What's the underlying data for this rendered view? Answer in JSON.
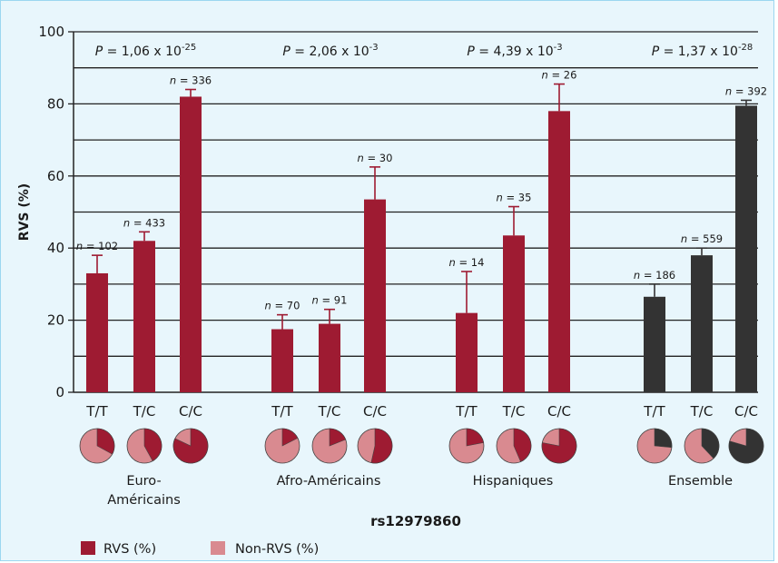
{
  "chart_data": {
    "type": "bar",
    "ylabel": "RVS (%)",
    "xlabel": "rs12979860",
    "ylim": [
      0,
      100
    ],
    "yticks": [
      0,
      20,
      40,
      60,
      80,
      100
    ],
    "grid": true,
    "n_prefix": "n = ",
    "groups": [
      {
        "name_lines": [
          "Euro-",
          "Américains"
        ],
        "p_value": {
          "prefix": "P",
          "mantissa": " = 1,06 x 10",
          "exponent": "-25"
        },
        "bars": [
          {
            "genotype": "T/T",
            "value": 33,
            "err": 5,
            "n": "102"
          },
          {
            "genotype": "T/C",
            "value": 42,
            "err": 2.5,
            "n": "433"
          },
          {
            "genotype": "C/C",
            "value": 82,
            "err": 2,
            "n": "336"
          }
        ]
      },
      {
        "name_lines": [
          "Afro-Américains"
        ],
        "p_value": {
          "prefix": "P",
          "mantissa": " = 2,06 x 10",
          "exponent": "-3"
        },
        "bars": [
          {
            "genotype": "T/T",
            "value": 17.5,
            "err": 4,
            "n": "70"
          },
          {
            "genotype": "T/C",
            "value": 19,
            "err": 4,
            "n": "91"
          },
          {
            "genotype": "C/C",
            "value": 53.5,
            "err": 9,
            "n": "30"
          }
        ]
      },
      {
        "name_lines": [
          "Hispaniques"
        ],
        "p_value": {
          "prefix": "P",
          "mantissa": " = 4,39 x 10",
          "exponent": "-3"
        },
        "bars": [
          {
            "genotype": "T/T",
            "value": 22,
            "err": 11.5,
            "n": "14"
          },
          {
            "genotype": "T/C",
            "value": 43.5,
            "err": 8,
            "n": "35"
          },
          {
            "genotype": "C/C",
            "value": 78,
            "err": 7.5,
            "n": "26"
          }
        ]
      },
      {
        "name_lines": [
          "Ensemble"
        ],
        "p_value": {
          "prefix": "P",
          "mantissa": " = 1,37 x 10",
          "exponent": "-28"
        },
        "bars": [
          {
            "genotype": "T/T",
            "value": 26.5,
            "err": 3.5,
            "n": "186"
          },
          {
            "genotype": "T/C",
            "value": 38,
            "err": 2,
            "n": "559"
          },
          {
            "genotype": "C/C",
            "value": 79.5,
            "err": 1.5,
            "n": "392"
          }
        ]
      }
    ],
    "legend": [
      {
        "label": "RVS (%)",
        "color": "#9e1b32"
      },
      {
        "label": "Non-RVS (%)",
        "color": "#d98a90"
      }
    ],
    "colors": {
      "rvs": "#9e1b32",
      "non_rvs": "#d98a90",
      "ensemble": "#333333",
      "ensemble_pie_bg": "#d98a90",
      "background": "#e8f6fc",
      "frame": "#9bd7f0"
    }
  }
}
